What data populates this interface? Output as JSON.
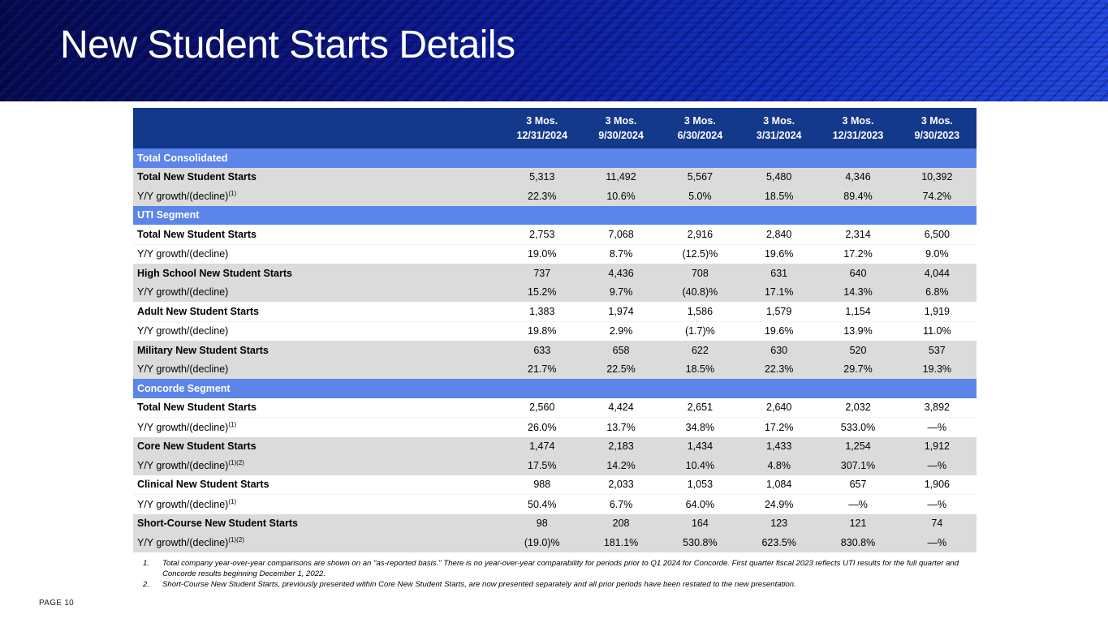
{
  "slide": {
    "title": "New Student Starts Details",
    "page_label": "PAGE 10"
  },
  "colors": {
    "header_navy": "#14388a",
    "band_blue": "#5b85e8",
    "row_gray": "#dbdbdb",
    "banner_blue": "#0d1c9a",
    "title_color": "#ffffff"
  },
  "table": {
    "columns": [
      {
        "duration": "3 Mos.",
        "period_end": "12/31/2024"
      },
      {
        "duration": "3 Mos.",
        "period_end": "9/30/2024"
      },
      {
        "duration": "3 Mos.",
        "period_end": "6/30/2024"
      },
      {
        "duration": "3 Mos.",
        "period_end": "3/31/2024"
      },
      {
        "duration": "3 Mos.",
        "period_end": "12/31/2023"
      },
      {
        "duration": "3 Mos.",
        "period_end": "9/30/2023"
      }
    ],
    "sections": [
      {
        "name": "Total Consolidated",
        "rows": [
          {
            "label": "Total New Student Starts",
            "sup": "",
            "values": [
              "5,313",
              "11,492",
              "5,567",
              "5,480",
              "4,346",
              "10,392"
            ]
          },
          {
            "label": "Y/Y growth/(decline)",
            "sup": "(1)",
            "values": [
              "22.3%",
              "10.6%",
              "5.0%",
              "18.5%",
              "89.4%",
              "74.2%"
            ]
          }
        ]
      },
      {
        "name": "UTI Segment",
        "rows": [
          {
            "label": "Total New Student Starts",
            "sup": "",
            "values": [
              "2,753",
              "7,068",
              "2,916",
              "2,840",
              "2,314",
              "6,500"
            ]
          },
          {
            "label": "Y/Y growth/(decline)",
            "sup": "",
            "values": [
              "19.0%",
              "8.7%",
              "(12.5)%",
              "19.6%",
              "17.2%",
              "9.0%"
            ]
          },
          {
            "label": "High School New Student Starts",
            "sup": "",
            "values": [
              "737",
              "4,436",
              "708",
              "631",
              "640",
              "4,044"
            ]
          },
          {
            "label": "Y/Y growth/(decline)",
            "sup": "",
            "values": [
              "15.2%",
              "9.7%",
              "(40.8)%",
              "17.1%",
              "14.3%",
              "6.8%"
            ]
          },
          {
            "label": "Adult New Student Starts",
            "sup": "",
            "values": [
              "1,383",
              "1,974",
              "1,586",
              "1,579",
              "1,154",
              "1,919"
            ]
          },
          {
            "label": "Y/Y growth/(decline)",
            "sup": "",
            "values": [
              "19.8%",
              "2.9%",
              "(1.7)%",
              "19.6%",
              "13.9%",
              "11.0%"
            ]
          },
          {
            "label": "Military New Student Starts",
            "sup": "",
            "values": [
              "633",
              "658",
              "622",
              "630",
              "520",
              "537"
            ]
          },
          {
            "label": "Y/Y growth/(decline)",
            "sup": "",
            "values": [
              "21.7%",
              "22.5%",
              "18.5%",
              "22.3%",
              "29.7%",
              "19.3%"
            ]
          }
        ]
      },
      {
        "name": "Concorde Segment",
        "rows": [
          {
            "label": "Total New Student Starts",
            "sup": "",
            "values": [
              "2,560",
              "4,424",
              "2,651",
              "2,640",
              "2,032",
              "3,892"
            ]
          },
          {
            "label": "Y/Y growth/(decline)",
            "sup": "(1)",
            "values": [
              "26.0%",
              "13.7%",
              "34.8%",
              "17.2%",
              "533.0%",
              "—%"
            ]
          },
          {
            "label": "Core New Student Starts",
            "sup": "",
            "values": [
              "1,474",
              "2,183",
              "1,434",
              "1,433",
              "1,254",
              "1,912"
            ]
          },
          {
            "label": "Y/Y growth/(decline)",
            "sup": "(1)(2)",
            "values": [
              "17.5%",
              "14.2%",
              "10.4%",
              "4.8%",
              "307.1%",
              "—%"
            ]
          },
          {
            "label": "Clinical New Student Starts",
            "sup": "",
            "values": [
              "988",
              "2,033",
              "1,053",
              "1,084",
              "657",
              "1,906"
            ]
          },
          {
            "label": "Y/Y growth/(decline)",
            "sup": "(1)",
            "values": [
              "50.4%",
              "6.7%",
              "64.0%",
              "24.9%",
              "—%",
              "—%"
            ]
          },
          {
            "label": "Short-Course New Student Starts",
            "sup": "",
            "values": [
              "98",
              "208",
              "164",
              "123",
              "121",
              "74"
            ]
          },
          {
            "label": "Y/Y growth/(decline)",
            "sup": "(1)(2)",
            "values": [
              "(19.0)%",
              "181.1%",
              "530.8%",
              "623.5%",
              "830.8%",
              "—%"
            ]
          }
        ]
      }
    ]
  },
  "footnotes": [
    {
      "num": "1.",
      "text": "Total company year-over-year comparisons are shown on an \"as-reported basis.\" There is no year-over-year comparability for periods prior to Q1 2024 for Concorde. First quarter fiscal 2023 reflects UTI results for the full quarter and Concorde results beginning December 1, 2022."
    },
    {
      "num": "2.",
      "text": "Short-Course New Student Starts, previously presented within Core New Student Starts, are now presented separately and all prior periods have been restated to the new presentation."
    }
  ]
}
